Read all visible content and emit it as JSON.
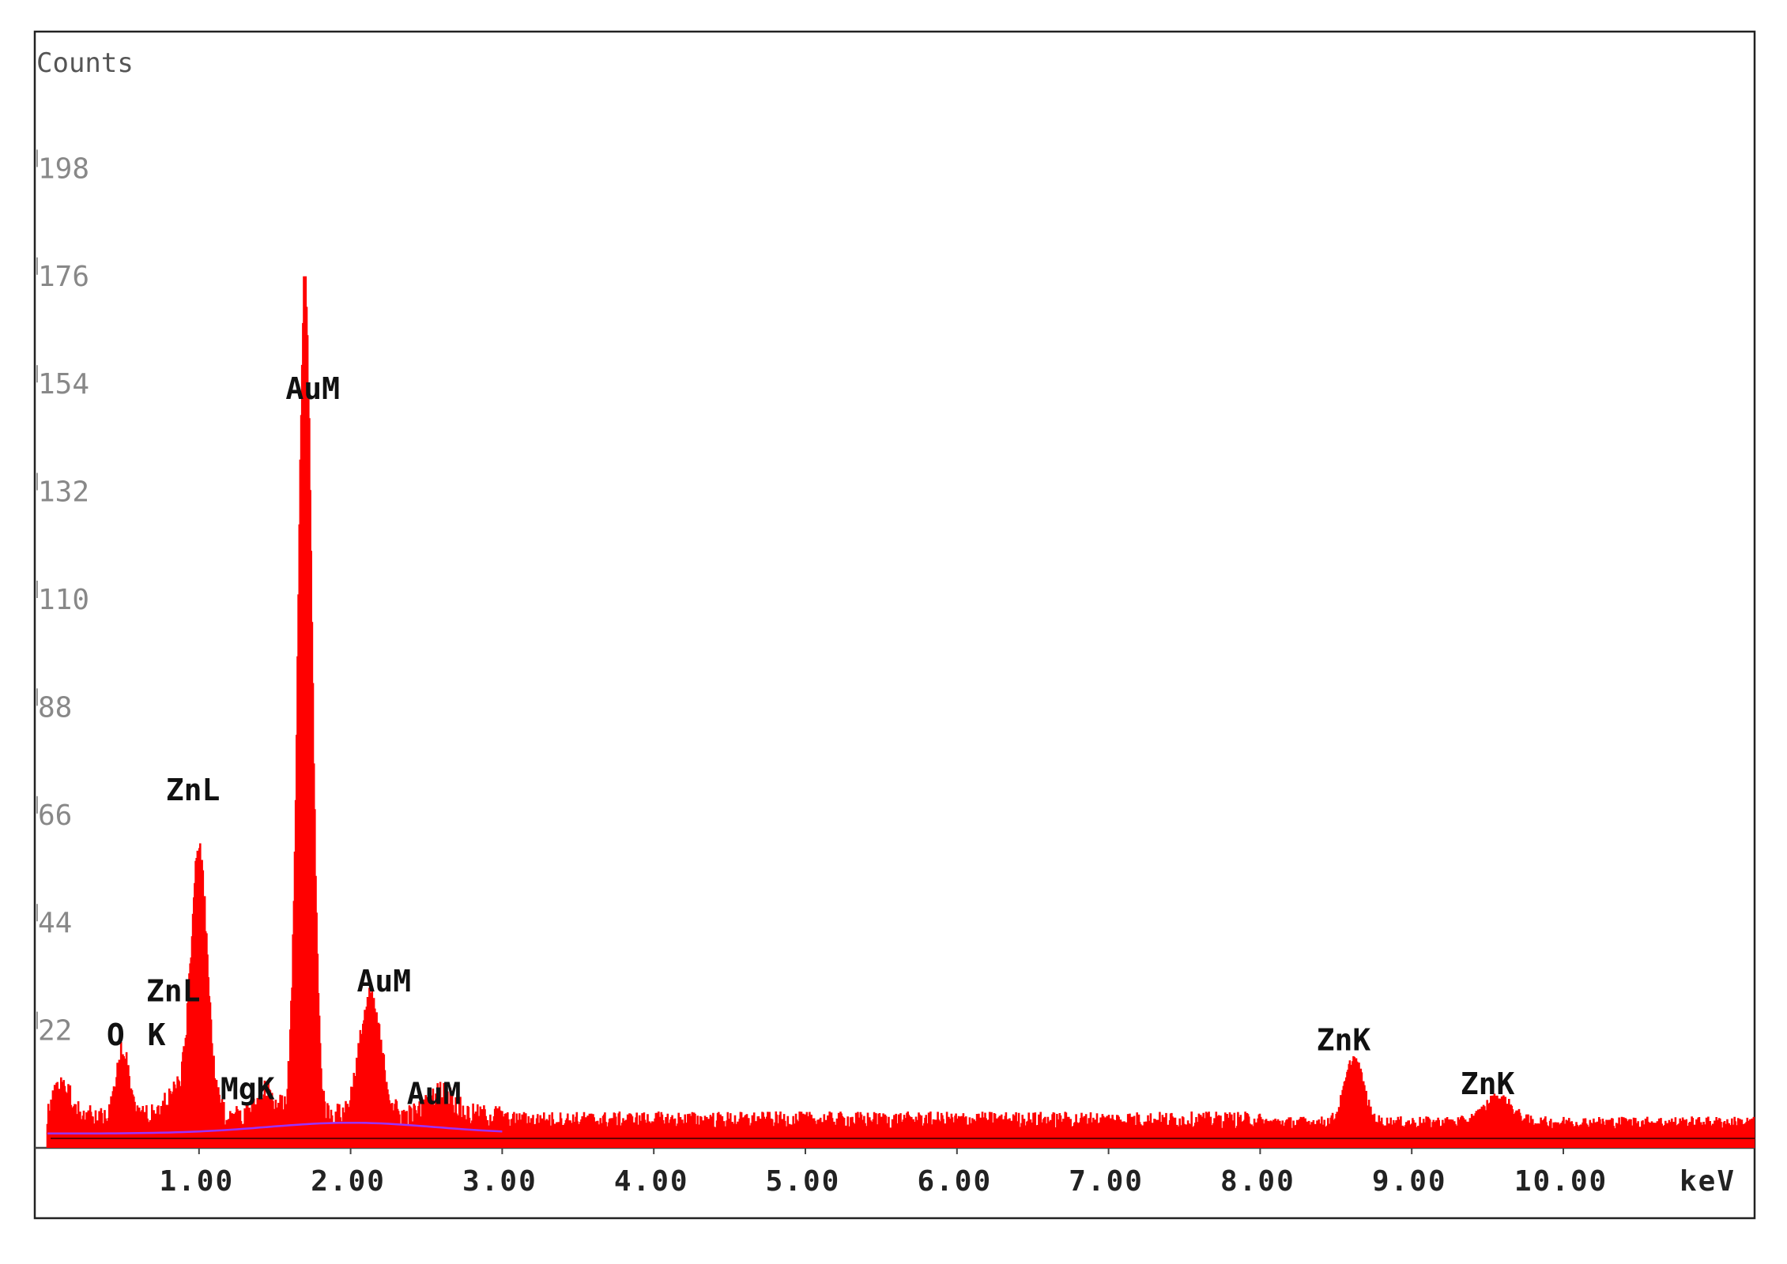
{
  "chart_data": {
    "type": "area",
    "ylabel": "Counts",
    "xlabel": "keV",
    "xlim": [
      0.0,
      11.3
    ],
    "ylim": [
      0,
      218
    ],
    "y_ticks": [
      22,
      44,
      66,
      88,
      110,
      132,
      154,
      176,
      198
    ],
    "y_tick_labels": [
      "22",
      "44",
      "66",
      "88",
      "110",
      "132",
      "154",
      "176",
      "198"
    ],
    "x_ticks": [
      1,
      2,
      3,
      4,
      5,
      6,
      7,
      8,
      9,
      10
    ],
    "x_tick_labels": [
      "1.00",
      "2.00",
      "3.00",
      "4.00",
      "5.00",
      "6.00",
      "7.00",
      "8.00",
      "9.00",
      "10.00"
    ],
    "grid": false,
    "series": [
      {
        "color": "#ff0000",
        "peaks": [
          {
            "x": 0.1,
            "y": 7
          },
          {
            "x": 0.5,
            "y": 14
          },
          {
            "x": 0.83,
            "y": 5
          },
          {
            "x": 1.0,
            "y": 54
          },
          {
            "x": 1.45,
            "y": 5
          },
          {
            "x": 1.7,
            "y": 170
          },
          {
            "x": 2.13,
            "y": 24
          },
          {
            "x": 2.6,
            "y": 5
          },
          {
            "x": 8.62,
            "y": 13
          },
          {
            "x": 9.57,
            "y": 5
          }
        ],
        "baseline": 2
      }
    ],
    "annotations": [
      {
        "text": "O",
        "x": 0.45,
        "y": 19
      },
      {
        "text": "K",
        "x": 0.72,
        "y": 19
      },
      {
        "text": "ZnL",
        "x": 0.96,
        "y": 69
      },
      {
        "text": "ZnL",
        "x": 0.83,
        "y": 28
      },
      {
        "text": "MgK",
        "x": 1.32,
        "y": 8
      },
      {
        "text": "AuM",
        "x": 1.75,
        "y": 151
      },
      {
        "text": "AuM",
        "x": 2.22,
        "y": 30
      },
      {
        "text": "AuM",
        "x": 2.55,
        "y": 7
      },
      {
        "text": "ZnK",
        "x": 8.55,
        "y": 18
      },
      {
        "text": "ZnK",
        "x": 9.5,
        "y": 9
      }
    ]
  }
}
